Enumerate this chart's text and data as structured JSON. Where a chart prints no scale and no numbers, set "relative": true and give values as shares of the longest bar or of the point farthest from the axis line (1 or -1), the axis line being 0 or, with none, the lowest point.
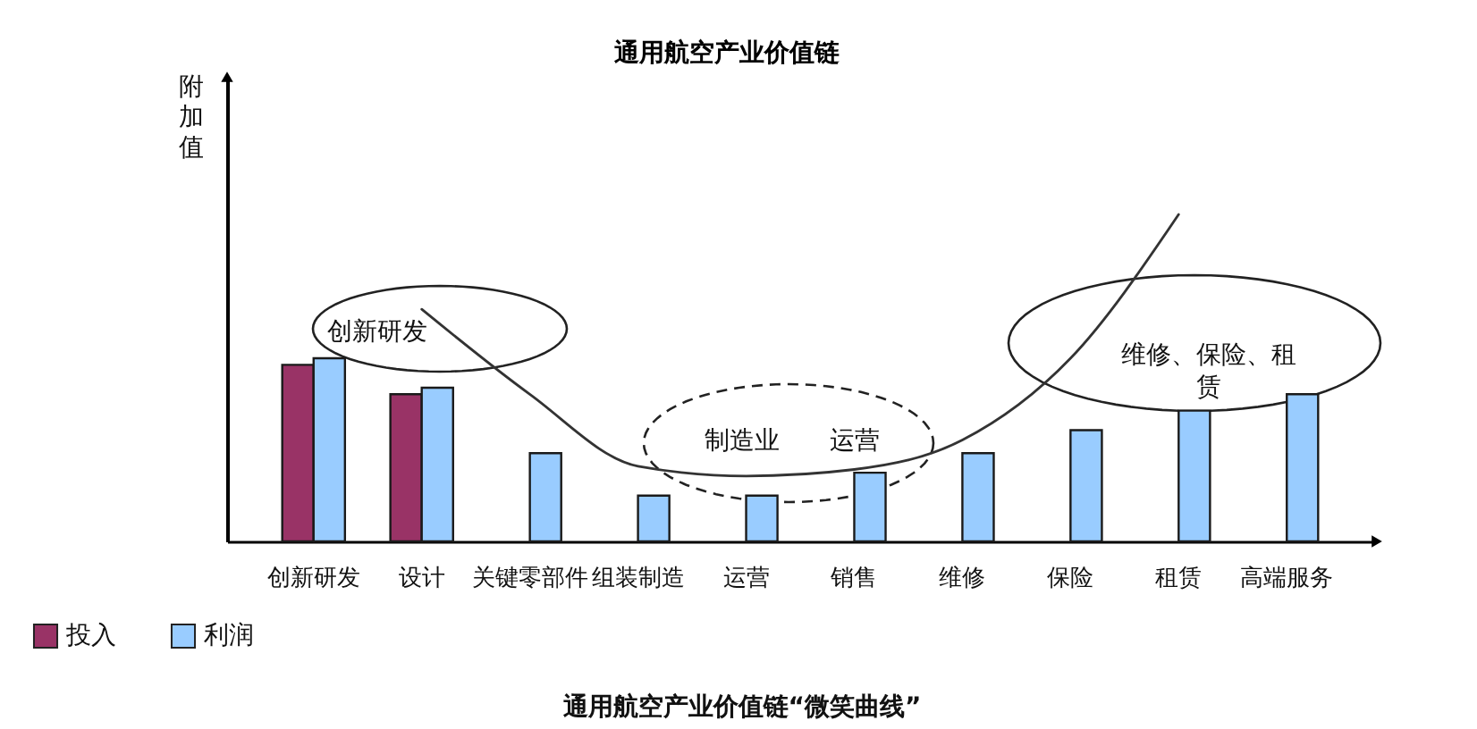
{
  "chart_data": {
    "type": "bar",
    "title": "通用航空产业价值链",
    "ylabel": "附加值",
    "categories": [
      "创新研发",
      "设计",
      "关键零部件",
      "组装制造",
      "运营",
      "销售",
      "维修",
      "保险",
      "租赁",
      "高端服务"
    ],
    "relative": true,
    "series": [
      {
        "name": "投入",
        "color": "#993366",
        "values": [
          0.54,
          0.45,
          null,
          null,
          null,
          null,
          null,
          null,
          null,
          null
        ]
      },
      {
        "name": "利润",
        "color": "#99ccff",
        "values": [
          0.56,
          0.47,
          0.27,
          0.14,
          0.14,
          0.21,
          0.27,
          0.34,
          0.4,
          0.45
        ]
      },
      {
        "type": "line",
        "color": "#333333",
        "values": [
          null,
          0.71,
          0.45,
          0.23,
          0.2,
          0.22,
          0.31,
          0.56,
          1.0,
          null
        ]
      }
    ],
    "legend": "bottom left",
    "annotations": [
      "创新研发",
      "制造业　　运营",
      "维修、保险、租赁",
      "通用航空产业价值链“微笑曲线”"
    ]
  }
}
